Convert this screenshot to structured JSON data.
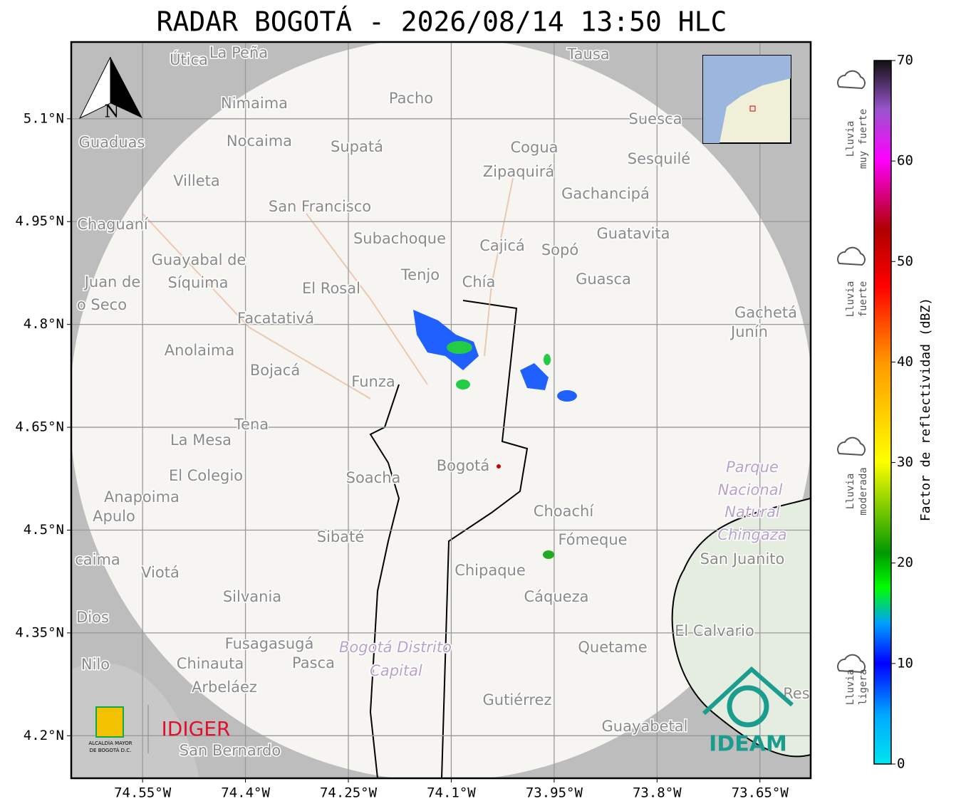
{
  "title": "RADAR BOGOTÁ - 2026/08/14 13:50 HLC",
  "map": {
    "xlim": [
      -74.654,
      -73.576
    ],
    "ylim": [
      4.138,
      5.212
    ],
    "xticks": [
      {
        "value": -74.55,
        "label": "74.55°W"
      },
      {
        "value": -74.4,
        "label": "74.4°W"
      },
      {
        "value": -74.25,
        "label": "74.25°W"
      },
      {
        "value": -74.1,
        "label": "74.1°W"
      },
      {
        "value": -73.95,
        "label": "73.95°W"
      },
      {
        "value": -73.8,
        "label": "73.8°W"
      },
      {
        "value": -73.65,
        "label": "73.65°W"
      }
    ],
    "yticks": [
      {
        "value": 5.1,
        "label": "5.1°N"
      },
      {
        "value": 4.95,
        "label": "4.95°N"
      },
      {
        "value": 4.8,
        "label": "4.8°N"
      },
      {
        "value": 4.65,
        "label": "4.65°N"
      },
      {
        "value": 4.5,
        "label": "4.5°N"
      },
      {
        "value": 4.35,
        "label": "4.35°N"
      },
      {
        "value": 4.2,
        "label": "4.2°N"
      }
    ],
    "places": [
      "Útica",
      "La Peña",
      "Tausa",
      "Pacho",
      "Nimaima",
      "Guaduas",
      "Nocaima",
      "Supatá",
      "Cogua",
      "Suesca",
      "Sesquilé",
      "Zipaquirá",
      "Villeta",
      "Gachancipá",
      "San Francisco",
      "Chaguaní",
      "Guatavita",
      "Subachoque",
      "Cajicá",
      "Sopó",
      "Guayabal de",
      "Síquima",
      "Juan de",
      "o Seco",
      "Tenjo",
      "Chía",
      "El Rosal",
      "Guasca",
      "Facatativá",
      "Gachetá",
      "Junín",
      "Anolaima",
      "Bojacá",
      "Funza",
      "Tena",
      "La Mesa",
      "El Colegio",
      "Soacha",
      "Bogotá",
      "Anapoima",
      "Apulo",
      "Choachí",
      "Sibaté",
      "Fómeque",
      "San Juanito",
      "caima",
      "Viotá",
      "Chipaque",
      "Silvania",
      "Cáqueza",
      "Dios",
      "El Calvario",
      "Fusagasugá",
      "Quetame",
      "Nilo",
      "Chinauta",
      "Pasca",
      "Arbeláez",
      "Gutiérrez",
      "Guayabetal",
      "San Bernardo",
      "Res"
    ],
    "protected_areas": [
      "Parque",
      "Nacional",
      "Natural",
      "Chingaza",
      "Bogotá Distrito",
      "Capital"
    ],
    "north": "N",
    "logos": {
      "idiger": "IDIGER",
      "alcaldia": [
        "ALCALDÍA MAYOR",
        "DE BOGOTÁ D.C."
      ],
      "ideam": "IDEAM"
    }
  },
  "colorbar": {
    "label": "Factor de reflectividad (dBZ)",
    "lim": [
      0,
      70
    ],
    "ticks": [
      0,
      10,
      20,
      30,
      40,
      50,
      60,
      70
    ],
    "categories": [
      [
        "Lluvia",
        "muy fuerte"
      ],
      [
        "Lluvia",
        "fuerte"
      ],
      [
        "Lluvia",
        "moderada"
      ],
      [
        "Lluvia",
        "ligera"
      ]
    ]
  }
}
